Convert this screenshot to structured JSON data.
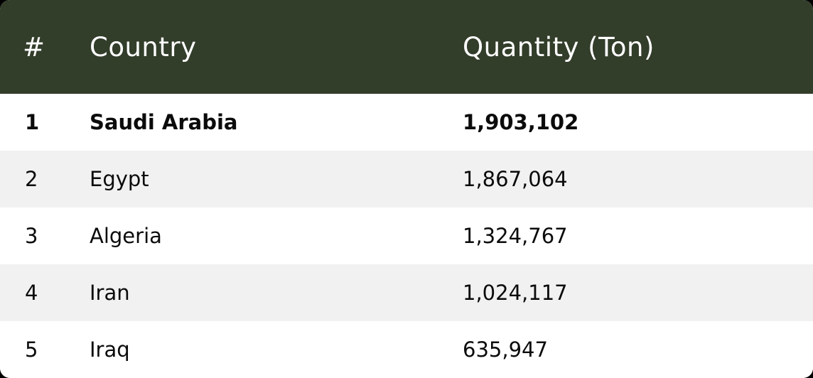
{
  "table": {
    "header": {
      "rank": "#",
      "country": "Country",
      "quantity": "Quantity (Ton)"
    },
    "rows": [
      {
        "rank": "1",
        "country": "Saudi Arabia",
        "quantity": "1,903,102",
        "bold": true
      },
      {
        "rank": "2",
        "country": "Egypt",
        "quantity": "1,867,064",
        "bold": false
      },
      {
        "rank": "3",
        "country": "Algeria",
        "quantity": "1,324,767",
        "bold": false
      },
      {
        "rank": "4",
        "country": "Iran",
        "quantity": "1,024,117",
        "bold": false
      },
      {
        "rank": "5",
        "country": "Iraq",
        "quantity": "635,947",
        "bold": false
      }
    ]
  },
  "colors": {
    "header_bg": "#323d2a",
    "header_text": "#ffffff",
    "row_alt_bg": "#f1f1f1",
    "row_bg": "#ffffff",
    "text": "#0b0b0b"
  }
}
